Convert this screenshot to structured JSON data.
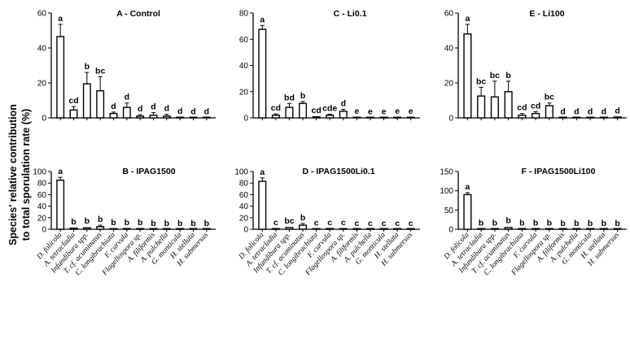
{
  "figure": {
    "ylabel_line1": "Species' relative contribution",
    "ylabel_line2": "to  total sporulation rate (%)"
  },
  "chart_data": [
    {
      "type": "bar",
      "title": "A - Control",
      "ylim": [
        0,
        60
      ],
      "yticks": [
        0,
        20,
        40,
        60
      ],
      "categories": [
        "D. folicola",
        "A. tetracladia",
        "Infundibura spp.",
        "T. cf. acuminatus",
        "C. longibrachiata",
        "F. curvula",
        "Flagellospora sp.",
        "A. filiformis",
        "A. pulchella",
        "G. monticula",
        "H. stellata",
        "H. submersus"
      ],
      "values": [
        46.5,
        4.5,
        19.5,
        15.5,
        2.5,
        6,
        1,
        1.5,
        1,
        0.3,
        0.2,
        0.2
      ],
      "errors": [
        7,
        2,
        6.5,
        8,
        0.8,
        2.5,
        0.8,
        1.5,
        1,
        0.2,
        0.1,
        0.1
      ],
      "letters": [
        "a",
        "cd",
        "b",
        "bc",
        "d",
        "d",
        "d",
        "d",
        "d",
        "d",
        "d",
        "d"
      ],
      "show_category_labels": false
    },
    {
      "type": "bar",
      "title": "C - Li0.1",
      "ylim": [
        0,
        80
      ],
      "yticks": [
        0,
        20,
        40,
        60,
        80
      ],
      "categories": [
        "D. folicola",
        "A. tetracladia",
        "Infundibura spp.",
        "T. cf. acuminatus",
        "C. longibrachiata",
        "F. curvula",
        "Flagellospora sp.",
        "A. filiformis",
        "A. pulchella",
        "G. monticula",
        "H. stellata",
        "H. submersus"
      ],
      "values": [
        67.5,
        2,
        8,
        11,
        0.8,
        2,
        5,
        0.3,
        0.2,
        0.2,
        0.3,
        0.3
      ],
      "errors": [
        3,
        1,
        3,
        1.5,
        0.4,
        0.8,
        1.5,
        0.2,
        0.1,
        0.1,
        0.2,
        0.2
      ],
      "letters": [
        "a",
        "cd",
        "bd",
        "b",
        "cd",
        "cde",
        "d",
        "e",
        "e",
        "e",
        "e",
        "e"
      ],
      "show_category_labels": false
    },
    {
      "type": "bar",
      "title": "E - Li100",
      "ylim": [
        0,
        60
      ],
      "yticks": [
        0,
        20,
        40,
        60
      ],
      "categories": [
        "D. folicola",
        "A. tetracladia",
        "Infundibura spp.",
        "T. cf. acuminatus",
        "C. longibrachiata",
        "F. curvula",
        "Flagellospora sp.",
        "A. filiformis",
        "A. pulchella",
        "G. monticula",
        "H. stellata",
        "H. submersus"
      ],
      "values": [
        48,
        12.5,
        12,
        15,
        1.5,
        2.5,
        7,
        0.2,
        0.2,
        0.2,
        0.2,
        0.5
      ],
      "errors": [
        5.5,
        5,
        9,
        6,
        1,
        1,
        1.5,
        0.1,
        0.1,
        0.1,
        0.1,
        0.3
      ],
      "letters": [
        "a",
        "bc",
        "bc",
        "b",
        "cd",
        "cd",
        "bc",
        "d",
        "d",
        "d",
        "d",
        "d"
      ],
      "show_category_labels": false
    },
    {
      "type": "bar",
      "title": "B - IPAG1500",
      "ylim": [
        0,
        100
      ],
      "yticks": [
        0,
        20,
        40,
        60,
        80,
        100
      ],
      "categories": [
        "D. folicola",
        "A. tetracladia",
        "Infundibura spp.",
        "T. cf. acuminatus",
        "C. longibrachiata",
        "F. curvula",
        "Flagellospora sp.",
        "A. filiformis",
        "A. pulchella",
        "G. monticula",
        "H. stellata",
        "H. submersus"
      ],
      "values": [
        85,
        2,
        2.5,
        4.5,
        0.8,
        1.2,
        0.8,
        0.2,
        0.2,
        0.2,
        0.2,
        0.2
      ],
      "errors": [
        5,
        1,
        1.5,
        2.5,
        0.4,
        0.5,
        0.4,
        0.1,
        0.1,
        0.1,
        0.1,
        0.1
      ],
      "letters": [
        "a",
        "b",
        "b",
        "b",
        "b",
        "b",
        "b",
        "b",
        "b",
        "b",
        "b",
        "b"
      ],
      "show_category_labels": true
    },
    {
      "type": "bar",
      "title": "D - IPAG1500Li0.1",
      "ylim": [
        0,
        100
      ],
      "yticks": [
        0,
        20,
        40,
        60,
        80,
        100
      ],
      "categories": [
        "D. folicola",
        "A. tetracladia",
        "Infundibura spp.",
        "T. cf. acuminatus",
        "C. longibrachiata",
        "F. curvula",
        "Flagellospora sp.",
        "A. filiformis",
        "A. pulchella",
        "G. monticula",
        "H. stellata",
        "H. submersus"
      ],
      "values": [
        83,
        1,
        3,
        7,
        0.5,
        1.2,
        0.8,
        0.2,
        0.2,
        0.2,
        0.2,
        0.2
      ],
      "errors": [
        6,
        0.5,
        1.5,
        3,
        0.3,
        0.5,
        0.4,
        0.1,
        0.1,
        0.1,
        0.1,
        0.1
      ],
      "letters": [
        "a",
        "c",
        "bc",
        "b",
        "c",
        "c",
        "c",
        "c",
        "c",
        "c",
        "c",
        "c"
      ],
      "show_category_labels": true
    },
    {
      "type": "bar",
      "title": "F - IPAG1500Li100",
      "ylim": [
        0,
        150
      ],
      "yticks": [
        0,
        50,
        100,
        150
      ],
      "categories": [
        "D. folicola",
        "A. tetracladia",
        "Infundibura spp.",
        "T. cf. acuminatus",
        "C. longibrachiata",
        "F. curvula",
        "Flagellospora sp.",
        "A. filiformis",
        "A. pulchella",
        "G. monticula",
        "H. stellata",
        "H. submersus"
      ],
      "values": [
        90,
        1,
        1,
        4.5,
        0.5,
        0.5,
        0.5,
        0.3,
        0.3,
        0.3,
        0.3,
        0.3
      ],
      "errors": [
        5,
        0.5,
        0.5,
        2.5,
        0.3,
        0.3,
        0.3,
        0.2,
        0.2,
        0.2,
        0.2,
        0.2
      ],
      "letters": [
        "a",
        "b",
        "b",
        "b",
        "b",
        "b",
        "b",
        "b",
        "b",
        "b",
        "b",
        "b"
      ],
      "show_category_labels": true
    }
  ]
}
